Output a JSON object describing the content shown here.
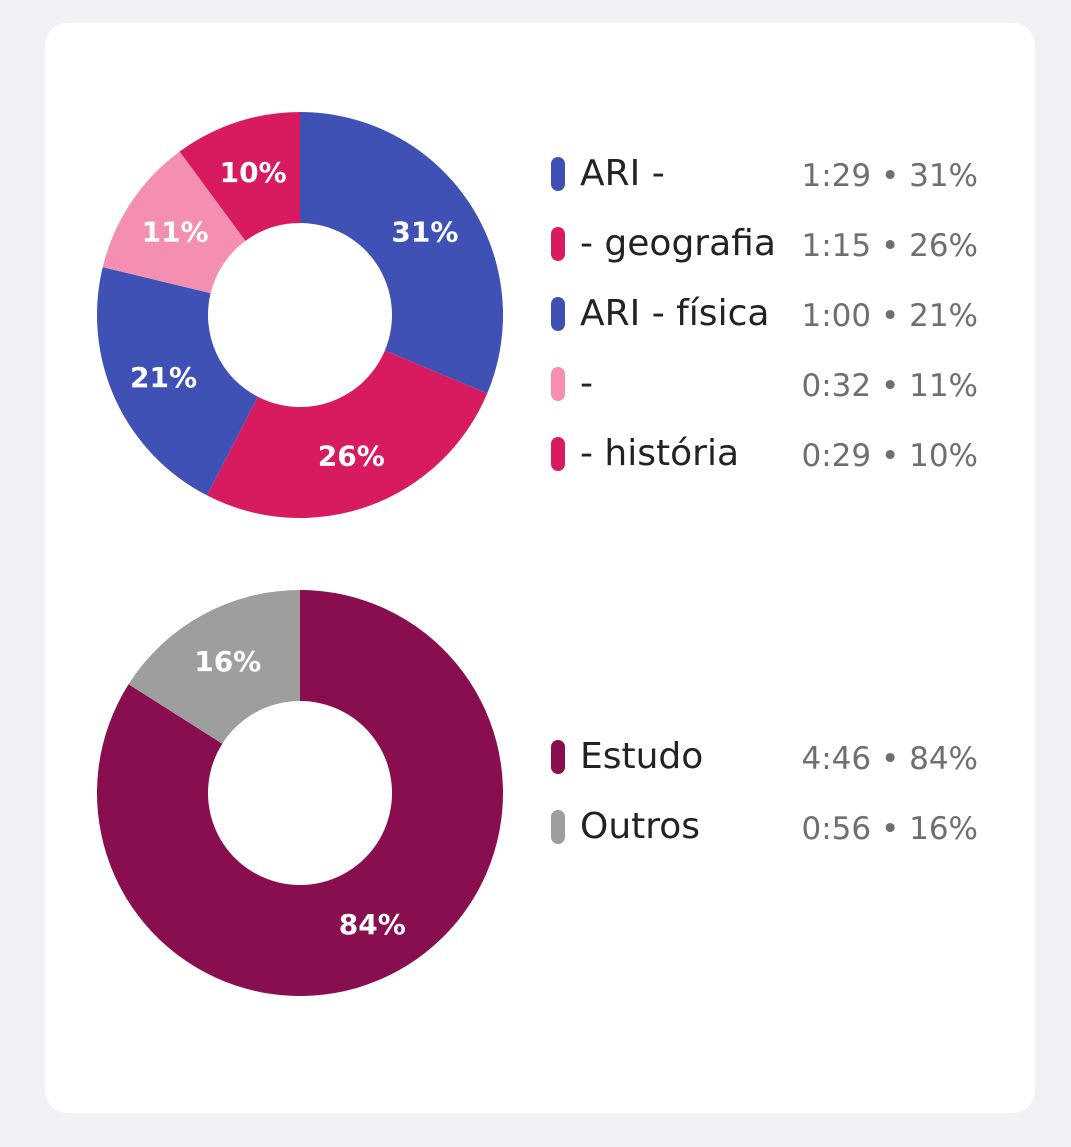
{
  "chart_data": [
    {
      "type": "pie",
      "style": "donut",
      "slices": [
        {
          "label": "ARI -",
          "value": 31,
          "percent_label": "31%",
          "time": "1:29",
          "legend_value": "1:29 • 31%",
          "color": "#3f51b5"
        },
        {
          "label": "- geografia",
          "value": 26,
          "percent_label": "26%",
          "time": "1:15",
          "legend_value": "1:15 • 26%",
          "color": "#d81b60"
        },
        {
          "label": "ARI - física",
          "value": 21,
          "percent_label": "21%",
          "time": "1:00",
          "legend_value": "1:00 • 21%",
          "color": "#3f51b5"
        },
        {
          "label": "-",
          "value": 11,
          "percent_label": "11%",
          "time": "0:32",
          "legend_value": "0:32 • 11%",
          "color": "#f48fb1"
        },
        {
          "label": "- história",
          "value": 10,
          "percent_label": "10%",
          "time": "0:29",
          "legend_value": "0:29 • 10%",
          "color": "#d81b60"
        }
      ]
    },
    {
      "type": "pie",
      "style": "donut",
      "slices": [
        {
          "label": "Estudo",
          "value": 84,
          "percent_label": "84%",
          "time": "4:46",
          "legend_value": "4:46 • 84%",
          "color": "#880e4f"
        },
        {
          "label": "Outros",
          "value": 16,
          "percent_label": "16%",
          "time": "0:56",
          "legend_value": "0:56 • 16%",
          "color": "#9e9e9e"
        }
      ]
    }
  ]
}
